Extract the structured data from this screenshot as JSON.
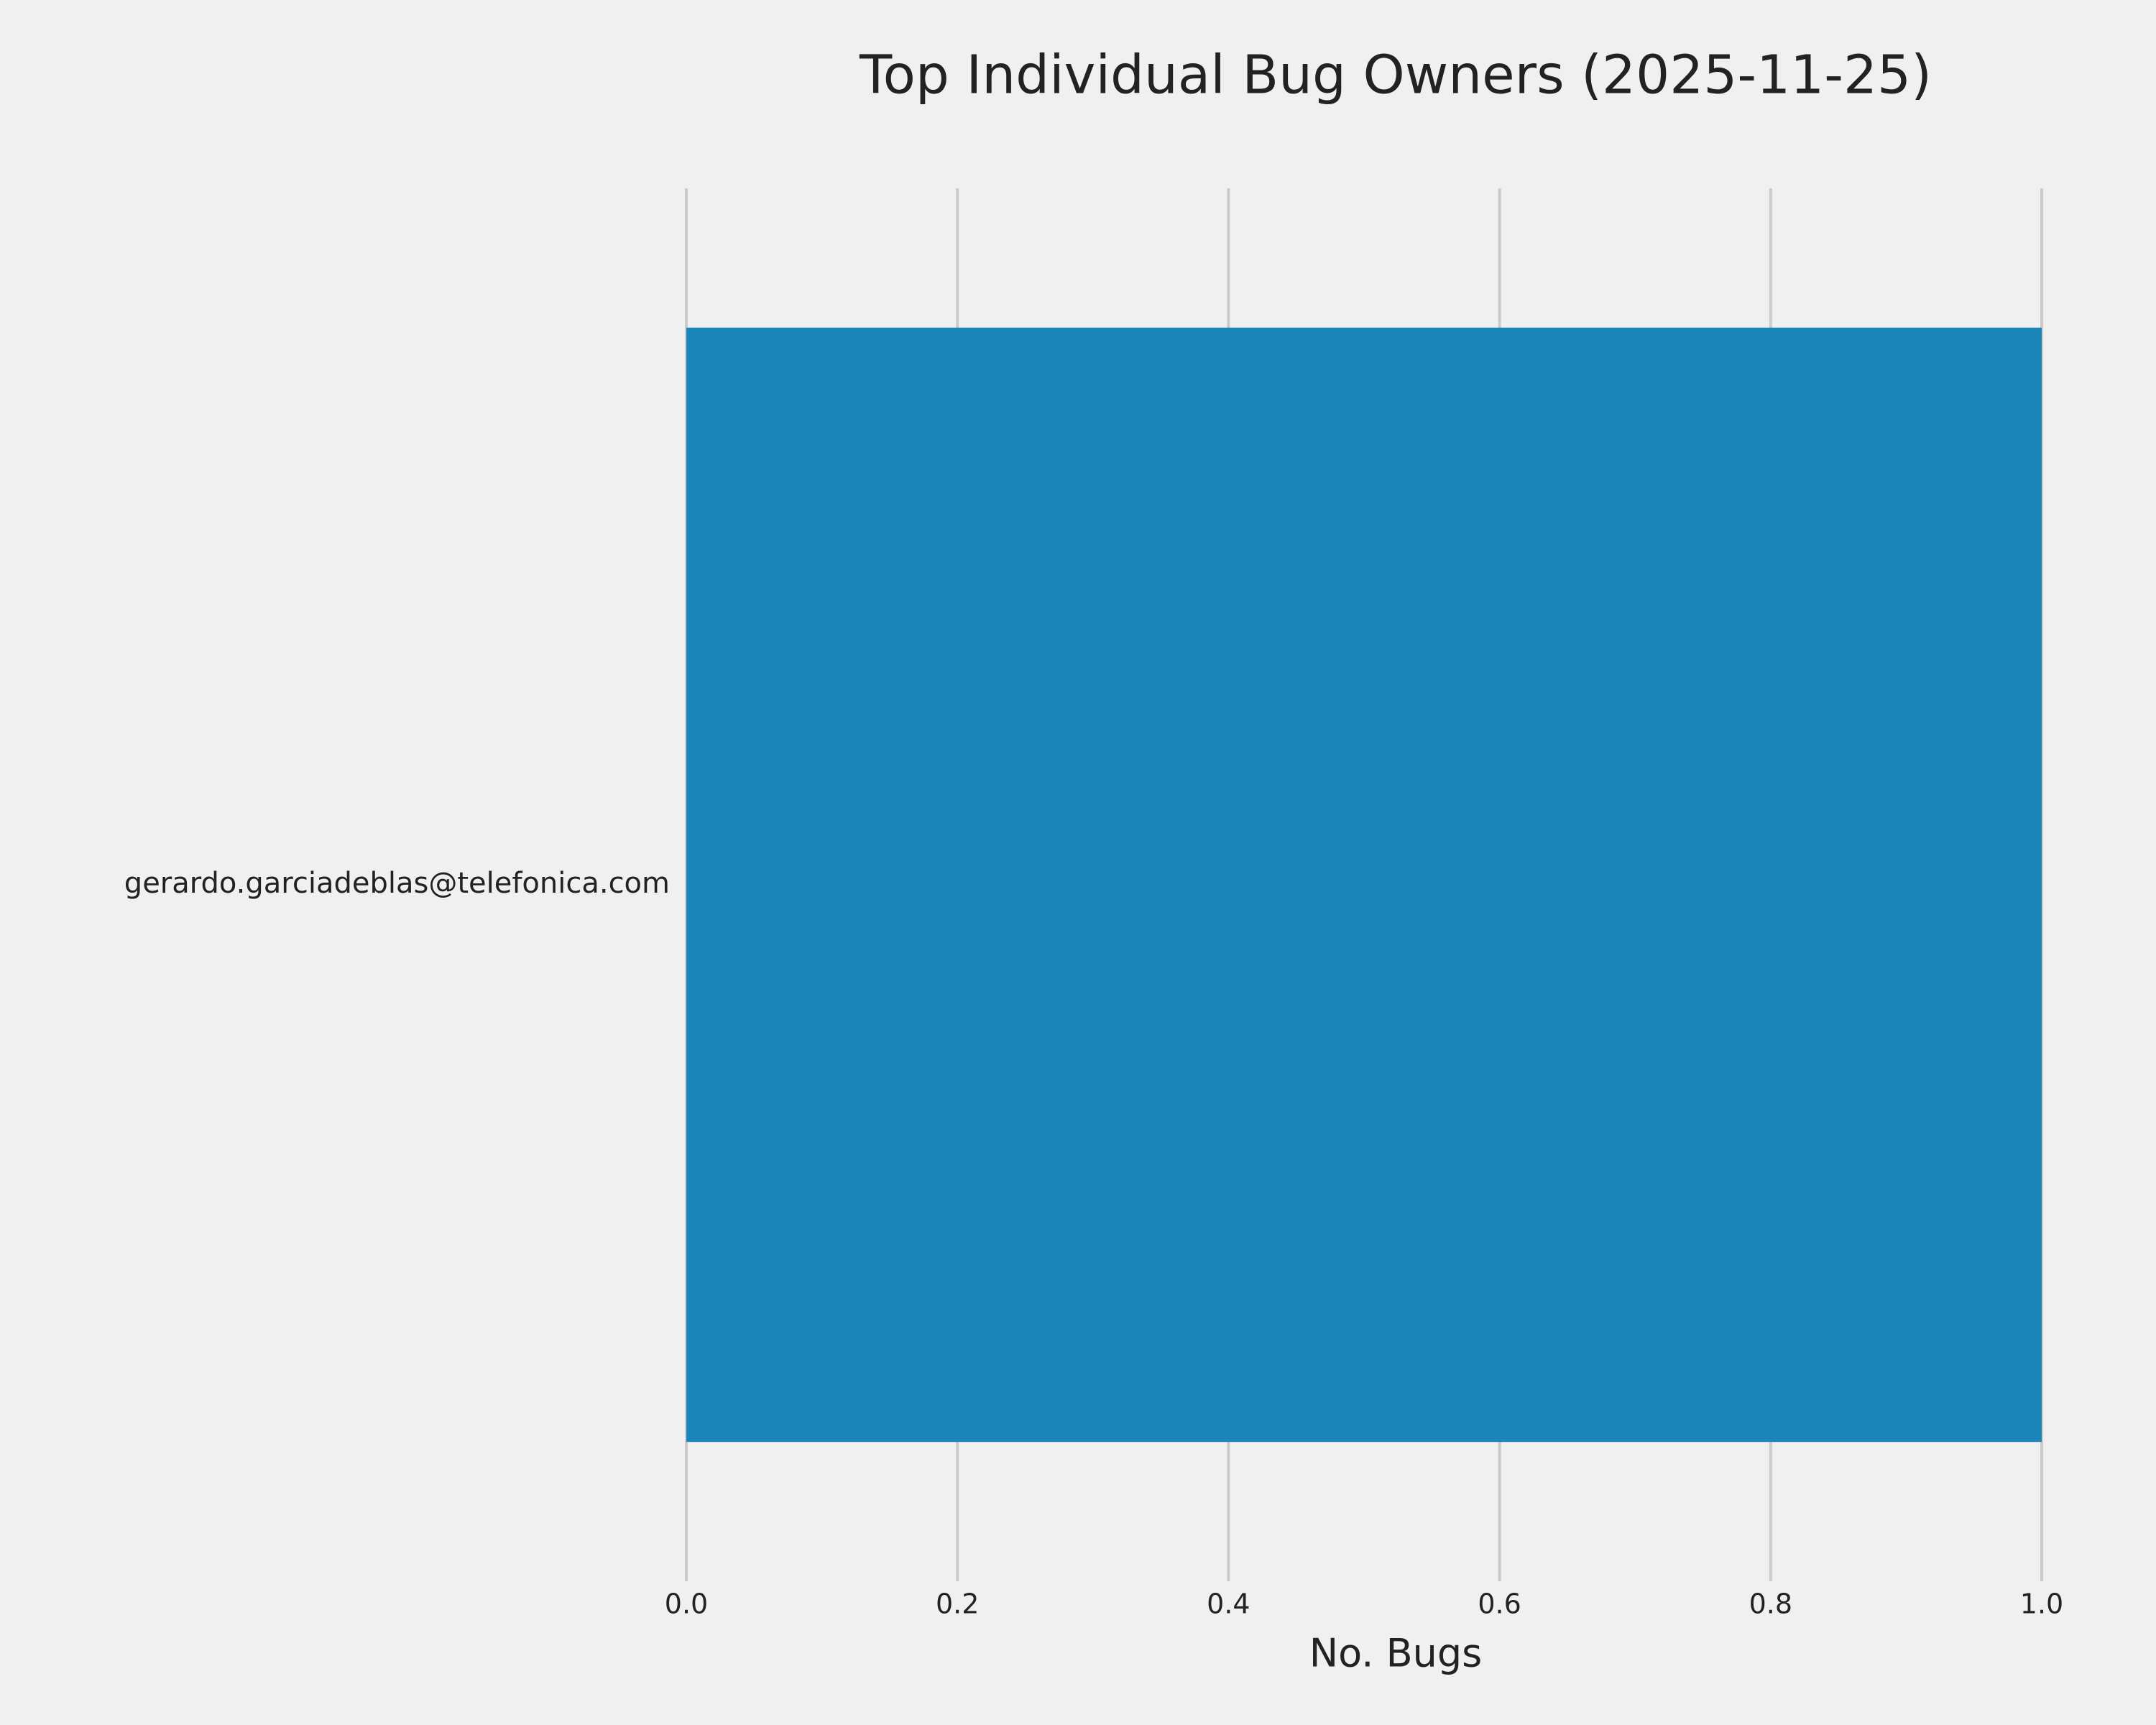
{
  "chart_data": {
    "type": "bar",
    "orientation": "horizontal",
    "title": "Top Individual Bug Owners (2025-11-25)",
    "x_label": "No. Bugs",
    "categories": [
      "gerardo.garciadeblas@telefonica.com"
    ],
    "values": [
      1
    ],
    "color": "#1c86ba",
    "xlim": [
      0,
      1
    ],
    "xticks": [
      {
        "value": 0,
        "label": "0.0"
      },
      0.2,
      0.4,
      0.6,
      0.8,
      {
        "value": 1,
        "label": "1.0"
      }
    ],
    "grid": true
  }
}
